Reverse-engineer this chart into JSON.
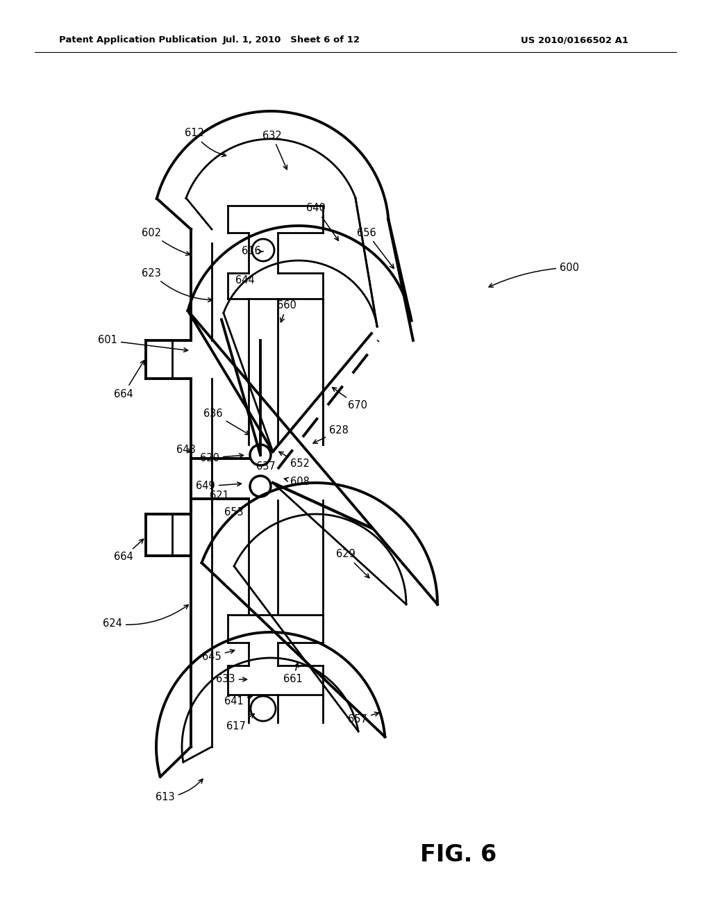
{
  "header_left": "Patent Application Publication",
  "header_center": "Jul. 1, 2010   Sheet 6 of 12",
  "header_right": "US 2010/0166502 A1",
  "figure_label": "FIG. 6",
  "bg_color": "#ffffff",
  "line_color": "#000000"
}
